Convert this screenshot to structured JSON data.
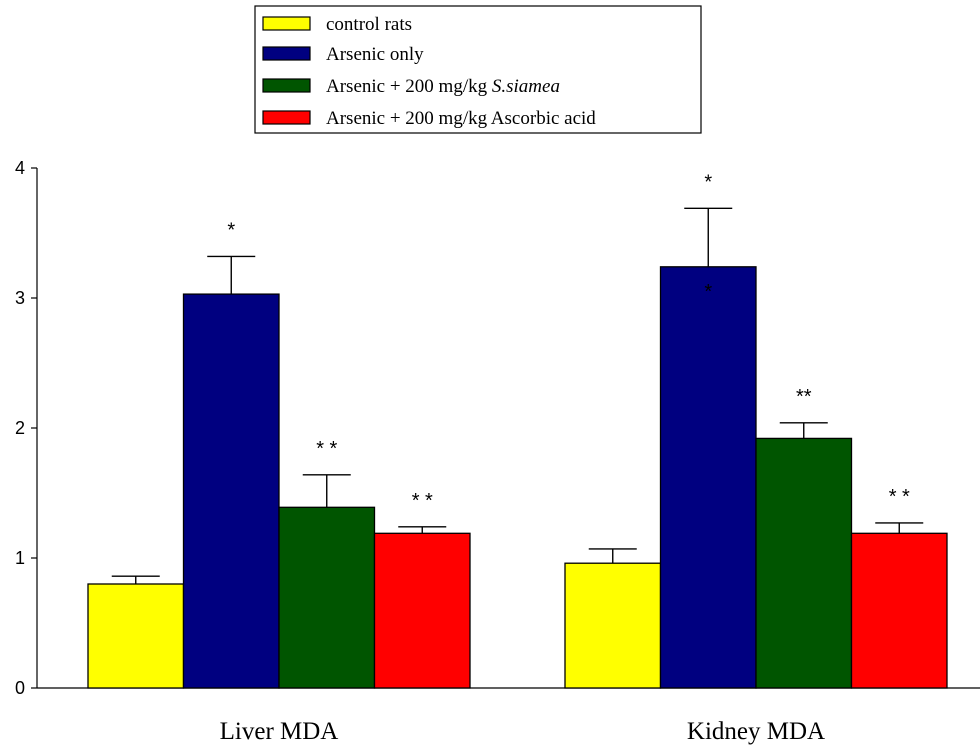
{
  "chart_data": {
    "type": "bar",
    "title": "",
    "xlabel": "",
    "ylabel": "",
    "ylim": [
      0,
      4
    ],
    "yticks": [
      "0",
      "1",
      "2",
      "3",
      "4"
    ],
    "grid": false,
    "legend_position": "top-center",
    "categories": [
      "Liver MDA",
      "Kidney MDA"
    ],
    "series": [
      {
        "name": "control rats",
        "color": "#ffff00",
        "values": [
          0.8,
          0.96
        ],
        "errors": [
          0.06,
          0.11
        ],
        "annotations": [
          "",
          ""
        ]
      },
      {
        "name": "Arsenic only",
        "color": "#000080",
        "values": [
          3.03,
          3.24
        ],
        "errors": [
          0.29,
          0.45
        ],
        "annotations": [
          "*",
          "*"
        ]
      },
      {
        "name_prefix": "Arsenic + 200 mg/kg ",
        "name_italic": "S.siamea",
        "color": "#005500",
        "values": [
          1.39,
          1.92
        ],
        "errors": [
          0.25,
          0.12
        ],
        "annotations": [
          "* *",
          "**"
        ]
      },
      {
        "name": "Arsenic + 200 mg/kg Ascorbic acid",
        "color": "#ff0000",
        "values": [
          1.19,
          1.19
        ],
        "errors": [
          0.05,
          0.08
        ],
        "annotations": [
          "* *",
          "* *"
        ]
      }
    ],
    "extra_annotations": [
      {
        "text": "*",
        "category_index": 1,
        "series_index": 1,
        "y": 3.06
      }
    ]
  }
}
